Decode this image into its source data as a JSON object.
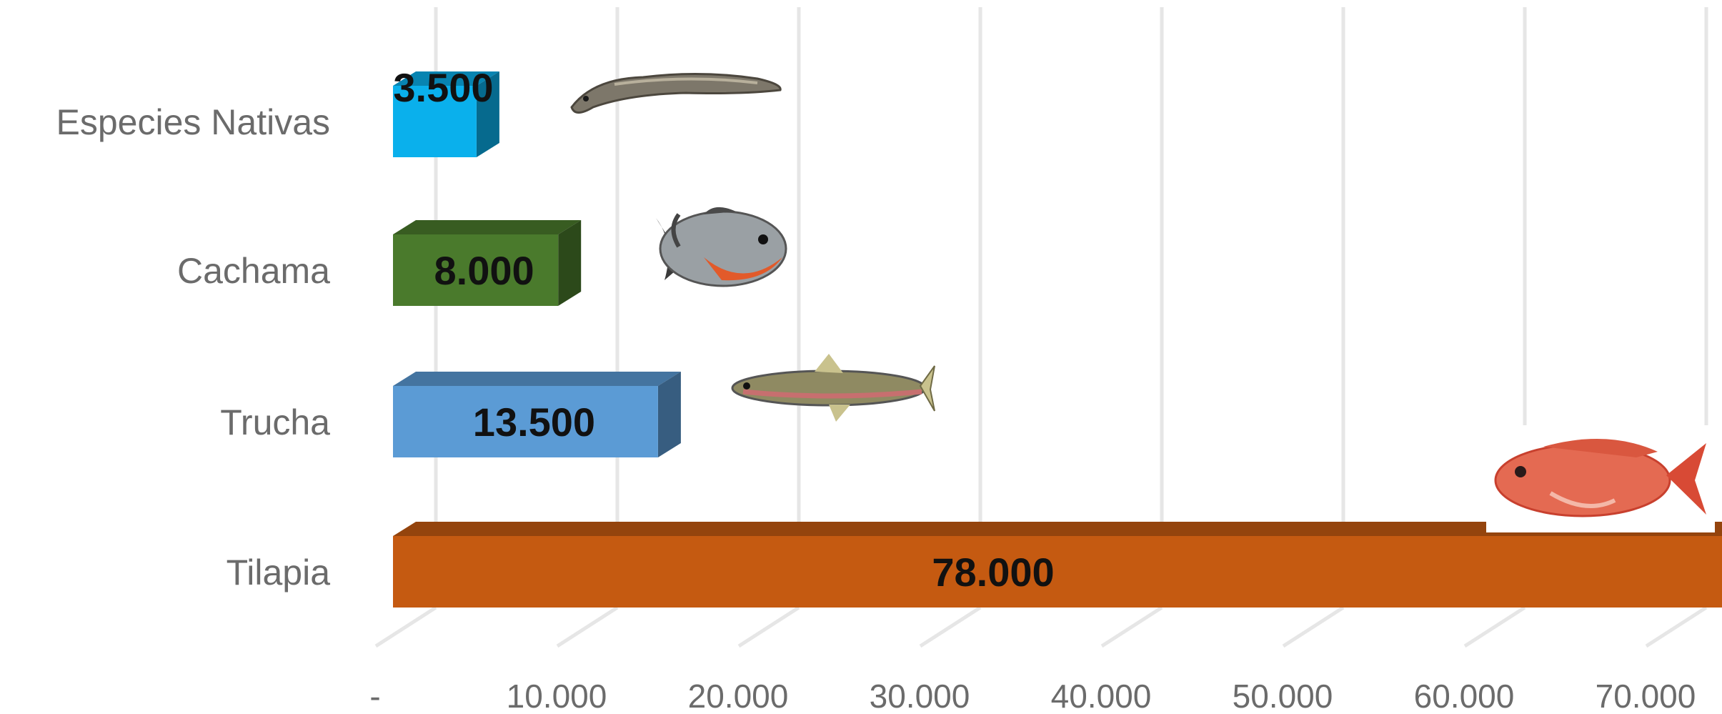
{
  "chart_data": {
    "type": "bar",
    "orientation": "horizontal",
    "style": "3d",
    "categories": [
      "Especies Nativas",
      "Cachama",
      "Trucha",
      "Tilapia"
    ],
    "values": [
      3500,
      8000,
      13500,
      78000
    ],
    "value_labels": [
      "3.500",
      "8.000",
      "13.500",
      "78.000"
    ],
    "bar_colors": [
      "#0ab0ec",
      "#4a7a2c",
      "#5b9bd5",
      "#c55a11"
    ],
    "bar_icons": [
      "fish-eel-icon",
      "fish-piranha-icon",
      "fish-trout-icon",
      "fish-tilapia-icon"
    ],
    "xlim": [
      0,
      70000
    ],
    "xticks": [
      0,
      10000,
      20000,
      30000,
      40000,
      50000,
      60000,
      70000
    ],
    "xtick_labels": [
      "-",
      "10.000",
      "20.000",
      "30.000",
      "40.000",
      "50.000",
      "60.000",
      "70.000"
    ],
    "grid": true,
    "legend": "none"
  }
}
